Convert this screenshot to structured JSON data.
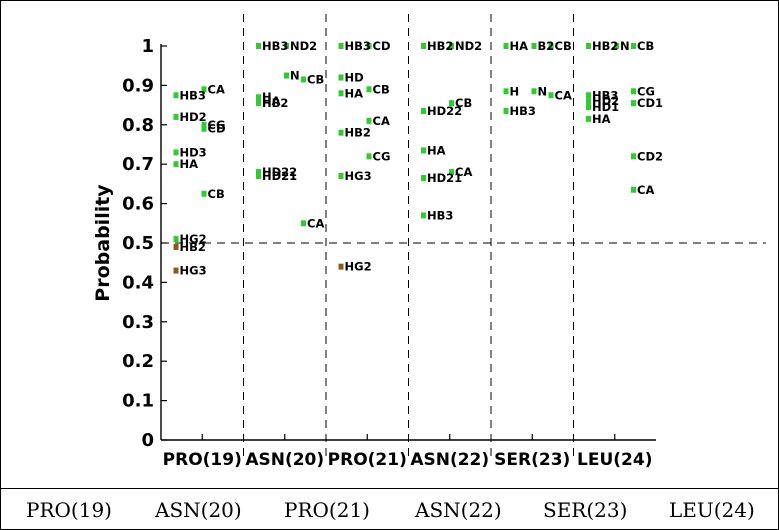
{
  "chart_data": {
    "type": "scatter",
    "title": "",
    "xlabel": "",
    "ylabel": "Probability",
    "ylim": [
      0,
      1
    ],
    "yticks": [
      "0",
      "0.1",
      "0.2",
      "0.3",
      "0.4",
      "0.5",
      "0.6",
      "0.7",
      "0.8",
      "0.9",
      "1"
    ],
    "threshold": 0.5,
    "categories": [
      "PRO(19)",
      "ASN(20)",
      "PRO(21)",
      "ASN(22)",
      "SER(23)",
      "LEU(24)"
    ],
    "colors": {
      "above": "#2ecc2e",
      "below": "#8b5a1a"
    },
    "groups": [
      {
        "residue": "PRO(19)",
        "points": [
          {
            "label": "HB3",
            "sub": 0,
            "y": 0.875
          },
          {
            "label": "HD2",
            "sub": 0,
            "y": 0.82
          },
          {
            "label": "HD3",
            "sub": 0,
            "y": 0.73
          },
          {
            "label": "HA",
            "sub": 0,
            "y": 0.7
          },
          {
            "label": "HG2",
            "sub": 0,
            "y": 0.51
          },
          {
            "label": "HB2",
            "sub": 0,
            "y": 0.49
          },
          {
            "label": "HG3",
            "sub": 0,
            "y": 0.43
          },
          {
            "label": "CA",
            "sub": 1,
            "y": 0.89
          },
          {
            "label": "CG",
            "sub": 1,
            "y": 0.8
          },
          {
            "label": "CD",
            "sub": 1,
            "y": 0.79
          },
          {
            "label": "CB",
            "sub": 1,
            "y": 0.625
          }
        ]
      },
      {
        "residue": "ASN(20)",
        "points": [
          {
            "label": "HB3",
            "sub": 0,
            "y": 1.0
          },
          {
            "label": "H",
            "sub": 0,
            "y": 0.87
          },
          {
            "label": "HA",
            "sub": 0,
            "y": 0.86
          },
          {
            "label": "HB2",
            "sub": 0,
            "y": 0.855
          },
          {
            "label": "HD22",
            "sub": 0,
            "y": 0.68
          },
          {
            "label": "HD21",
            "sub": 0,
            "y": 0.67
          },
          {
            "label": "ND2",
            "sub": 1,
            "y": 1.0
          },
          {
            "label": "N",
            "sub": 1,
            "y": 0.925
          },
          {
            "label": "CB",
            "sub": 2,
            "y": 0.915
          },
          {
            "label": "CA",
            "sub": 2,
            "y": 0.55
          }
        ]
      },
      {
        "residue": "PRO(21)",
        "points": [
          {
            "label": "HB3",
            "sub": 0,
            "y": 1.0
          },
          {
            "label": "HD",
            "sub": 0,
            "y": 0.92
          },
          {
            "label": "HA",
            "sub": 0,
            "y": 0.88
          },
          {
            "label": "HB2",
            "sub": 0,
            "y": 0.78
          },
          {
            "label": "HG3",
            "sub": 0,
            "y": 0.67
          },
          {
            "label": "HG2",
            "sub": 0,
            "y": 0.44
          },
          {
            "label": "CD",
            "sub": 1,
            "y": 1.0
          },
          {
            "label": "CB",
            "sub": 1,
            "y": 0.89
          },
          {
            "label": "CA",
            "sub": 1,
            "y": 0.81
          },
          {
            "label": "CG",
            "sub": 1,
            "y": 0.72
          }
        ]
      },
      {
        "residue": "ASN(22)",
        "points": [
          {
            "label": "HB2",
            "sub": 0,
            "y": 1.0
          },
          {
            "label": "HD22",
            "sub": 0,
            "y": 0.835
          },
          {
            "label": "HA",
            "sub": 0,
            "y": 0.735
          },
          {
            "label": "HD21",
            "sub": 0,
            "y": 0.665
          },
          {
            "label": "HB3",
            "sub": 0,
            "y": 0.57
          },
          {
            "label": "ND2",
            "sub": 1,
            "y": 1.0
          },
          {
            "label": "CB",
            "sub": 1,
            "y": 0.855
          },
          {
            "label": "CA",
            "sub": 1,
            "y": 0.68
          }
        ]
      },
      {
        "residue": "SER(23)",
        "points": [
          {
            "label": "HA",
            "sub": 0,
            "y": 1.0
          },
          {
            "label": "H",
            "sub": 0,
            "y": 0.885
          },
          {
            "label": "HB3",
            "sub": 0,
            "y": 0.835
          },
          {
            "label": "B2",
            "sub": 1,
            "y": 1.0
          },
          {
            "label": "N",
            "sub": 1,
            "y": 0.885
          },
          {
            "label": "CB",
            "sub": 2,
            "y": 1.0
          },
          {
            "label": "CA",
            "sub": 2,
            "y": 0.875
          }
        ]
      },
      {
        "residue": "LEU(24)",
        "points": [
          {
            "label": "HB2",
            "sub": 0,
            "y": 1.0
          },
          {
            "label": "HB3",
            "sub": 0,
            "y": 0.875
          },
          {
            "label": "HD2",
            "sub": 0,
            "y": 0.86
          },
          {
            "label": "HD1",
            "sub": 0,
            "y": 0.845
          },
          {
            "label": "HA",
            "sub": 0,
            "y": 0.815
          },
          {
            "label": "N",
            "sub": 1,
            "y": 1.0
          },
          {
            "label": "CB",
            "sub": 2,
            "y": 1.0
          },
          {
            "label": "CG",
            "sub": 2,
            "y": 0.885
          },
          {
            "label": "CD1",
            "sub": 2,
            "y": 0.855
          },
          {
            "label": "CD2",
            "sub": 2,
            "y": 0.72
          },
          {
            "label": "CA",
            "sub": 2,
            "y": 0.635
          }
        ]
      }
    ]
  },
  "bottom_labels": [
    "PRO(19)",
    "ASN(20)",
    "PRO(21)",
    "ASN(22)",
    "SER(23)",
    "LEU(24)"
  ]
}
